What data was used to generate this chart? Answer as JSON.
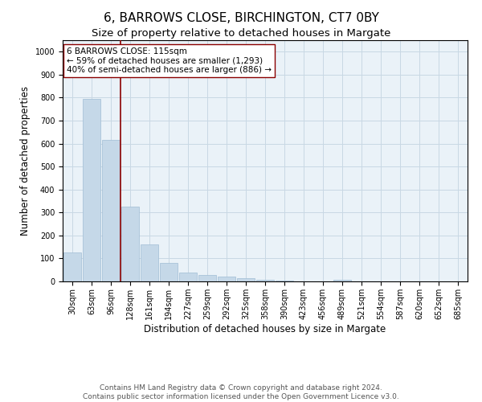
{
  "title": "6, BARROWS CLOSE, BIRCHINGTON, CT7 0BY",
  "subtitle": "Size of property relative to detached houses in Margate",
  "xlabel": "Distribution of detached houses by size in Margate",
  "ylabel": "Number of detached properties",
  "categories": [
    "30sqm",
    "63sqm",
    "96sqm",
    "128sqm",
    "161sqm",
    "194sqm",
    "227sqm",
    "259sqm",
    "292sqm",
    "325sqm",
    "358sqm",
    "390sqm",
    "423sqm",
    "456sqm",
    "489sqm",
    "521sqm",
    "554sqm",
    "587sqm",
    "620sqm",
    "652sqm",
    "685sqm"
  ],
  "values": [
    125,
    795,
    615,
    325,
    160,
    80,
    40,
    28,
    22,
    15,
    8,
    2,
    0,
    0,
    8,
    0,
    0,
    0,
    0,
    0,
    0
  ],
  "bar_color": "#c5d8e8",
  "bar_edge_color": "#a0bcd4",
  "marker_line_index": 2.5,
  "marker_line_color": "#8b0000",
  "annotation_text": "6 BARROWS CLOSE: 115sqm\n← 59% of detached houses are smaller (1,293)\n40% of semi-detached houses are larger (886) →",
  "annotation_box_color": "#ffffff",
  "annotation_box_edge_color": "#8b0000",
  "ylim": [
    0,
    1050
  ],
  "yticks": [
    0,
    100,
    200,
    300,
    400,
    500,
    600,
    700,
    800,
    900,
    1000
  ],
  "footer_line1": "Contains HM Land Registry data © Crown copyright and database right 2024.",
  "footer_line2": "Contains public sector information licensed under the Open Government Licence v3.0.",
  "background_color": "#ffffff",
  "plot_bg_color": "#eaf2f8",
  "grid_color": "#c8d8e4",
  "title_fontsize": 11,
  "subtitle_fontsize": 9.5,
  "axis_label_fontsize": 8.5,
  "tick_fontsize": 7,
  "annotation_fontsize": 7.5,
  "footer_fontsize": 6.5
}
